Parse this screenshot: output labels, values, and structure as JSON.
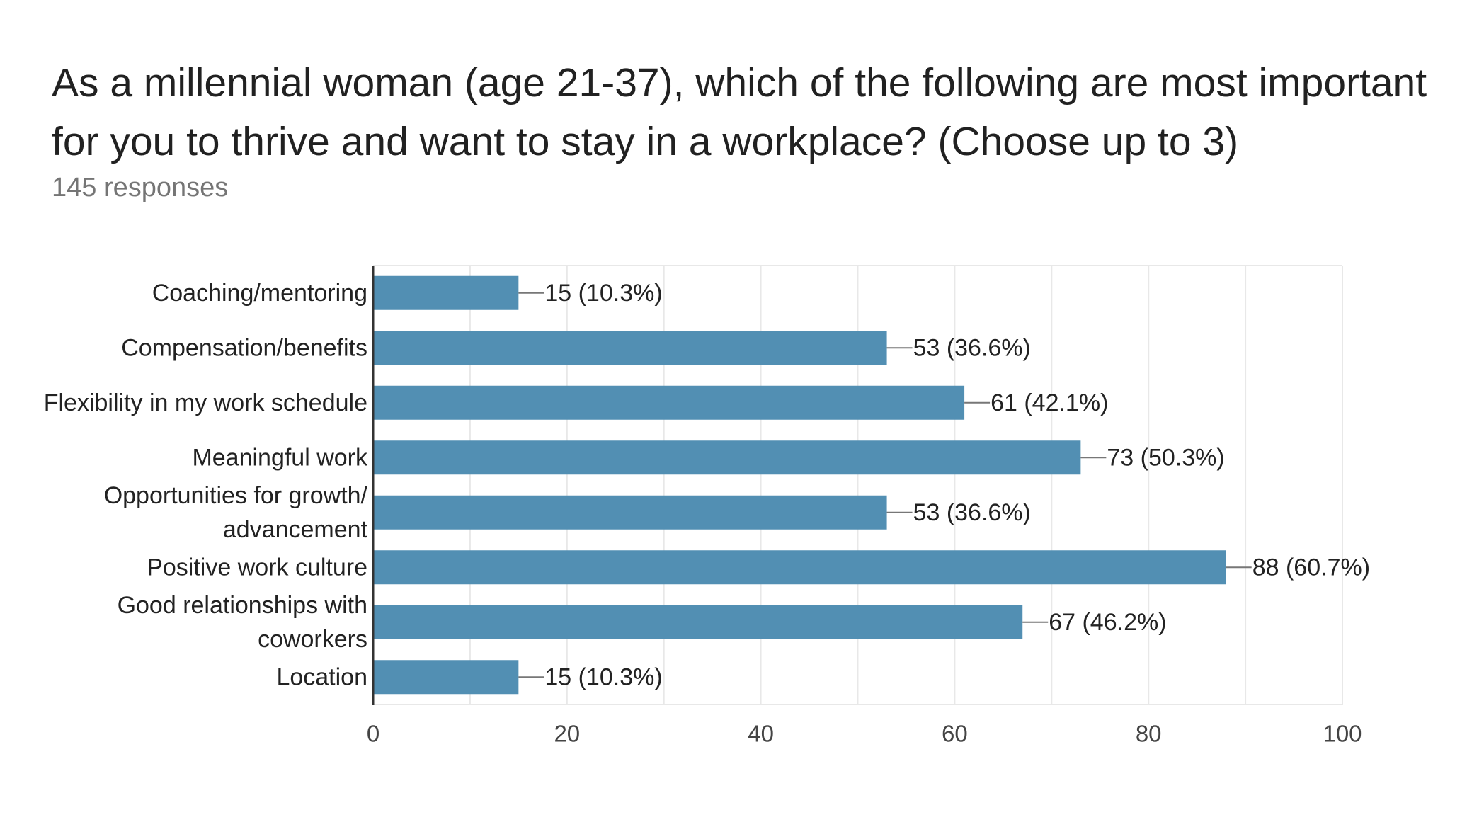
{
  "header": {
    "title": "As a millennial woman (age 21-37), which of the following are most important for you to thrive and want to stay in a workplace? (Choose up to 3)",
    "subtitle": "145 responses"
  },
  "chart_data": {
    "type": "bar",
    "orientation": "horizontal",
    "title": "As a millennial woman (age 21-37), which of the following are most important for you to thrive and want to stay in a workplace? (Choose up to 3)",
    "subtitle": "145 responses",
    "categories": [
      [
        "Coaching/mentoring"
      ],
      [
        "Compensation/benefits"
      ],
      [
        "Flexibility in my work schedule"
      ],
      [
        "Meaningful work"
      ],
      [
        "Opportunities for growth/",
        "advancement"
      ],
      [
        "Positive work culture"
      ],
      [
        "Good relationships with",
        "coworkers"
      ],
      [
        "Location"
      ]
    ],
    "values": [
      15,
      53,
      61,
      73,
      53,
      88,
      67,
      15
    ],
    "data_labels": [
      "15 (10.3%)",
      "53 (36.6%)",
      "61 (42.1%)",
      "73 (50.3%)",
      "53 (36.6%)",
      "88 (60.7%)",
      "67 (46.2%)",
      "15 (10.3%)"
    ],
    "x_ticks": [
      "0",
      "20",
      "40",
      "60",
      "80",
      "100"
    ],
    "xlim": [
      0,
      100
    ],
    "grid": true,
    "legend": "none",
    "colors": {
      "bar": "#528fb3",
      "axis": "#333333",
      "grid": "#e8e8e8",
      "leader": "#777777"
    }
  }
}
